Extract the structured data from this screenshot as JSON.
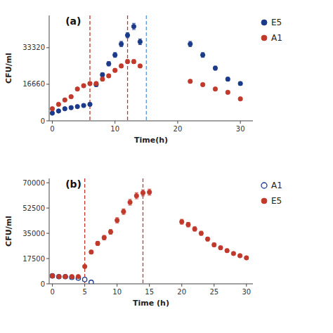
{
  "chart_data": [
    {
      "type": "scatter",
      "title": "(a)",
      "x_label": "Time(h)",
      "y_label": "CFU/ml",
      "xlim": [
        -0.5,
        32
      ],
      "ylim": [
        0,
        48000
      ],
      "xticks": [
        0,
        10,
        20,
        30
      ],
      "yticks": [
        0,
        16660,
        33320
      ],
      "grid": false,
      "legend": "right",
      "series": [
        {
          "name": "E5",
          "color": "#1a3a8a",
          "marker": "circle",
          "x": [
            0,
            1,
            2,
            3,
            4,
            5,
            6,
            7,
            8,
            9,
            10,
            11,
            12,
            13,
            14,
            22,
            24,
            26,
            28,
            30
          ],
          "values": [
            3500,
            4500,
            5500,
            6000,
            6500,
            7000,
            7500,
            16500,
            21000,
            26000,
            30000,
            35000,
            39000,
            43000,
            36000,
            35000,
            30000,
            24000,
            19000,
            17000
          ],
          "errors": [
            300,
            350,
            350,
            400,
            400,
            400,
            600,
            800,
            900,
            1000,
            1100,
            1200,
            1200,
            1400,
            1300,
            1200,
            1100,
            900,
            800,
            700
          ]
        },
        {
          "name": "A1",
          "color": "#c0392b",
          "marker": "circle",
          "x": [
            0,
            1,
            2,
            3,
            4,
            5,
            6,
            7,
            8,
            9,
            10,
            11,
            12,
            13,
            14,
            22,
            24,
            26,
            28,
            30
          ],
          "values": [
            5500,
            7500,
            9500,
            11000,
            14500,
            16000,
            17000,
            17000,
            19000,
            20500,
            23000,
            25000,
            27000,
            27000,
            25000,
            18000,
            16500,
            14500,
            13000,
            10000
          ],
          "errors": [
            300,
            350,
            400,
            450,
            600,
            650,
            650,
            650,
            700,
            750,
            800,
            850,
            850,
            850,
            750,
            650,
            600,
            550,
            500,
            400
          ]
        }
      ],
      "vlines": [
        {
          "x": 6,
          "color": "#c0392b",
          "line_style": "dashed"
        },
        {
          "x": 12,
          "color": "#c0392b",
          "line_style": "dashed"
        },
        {
          "x": 15,
          "color": "#5b9bd5",
          "line_style": "dashed"
        }
      ]
    },
    {
      "type": "scatter",
      "title": "(b)",
      "x_label": "Time (h)",
      "y_label": "CFU/ml",
      "xlim": [
        -0.5,
        31
      ],
      "ylim": [
        0,
        73000
      ],
      "xticks": [
        0,
        5,
        10,
        15,
        20,
        25,
        30
      ],
      "yticks": [
        0,
        17500,
        35000,
        52500,
        70000
      ],
      "grid": false,
      "legend": "right",
      "series": [
        {
          "name": "A1",
          "color": "#1a3a8a",
          "marker": "open-circle",
          "x": [
            0,
            1,
            2,
            3,
            4,
            5,
            6
          ],
          "values": [
            5500,
            5000,
            5000,
            4500,
            4000,
            3000,
            1000
          ],
          "errors": [
            500,
            500,
            500,
            450,
            400,
            350,
            200
          ]
        },
        {
          "name": "E5",
          "color": "#c0392b",
          "marker": "circle",
          "x": [
            0,
            1,
            2,
            3,
            4,
            5,
            6,
            7,
            8,
            9,
            10,
            11,
            12,
            13,
            14,
            15,
            20,
            21,
            22,
            23,
            24,
            25,
            26,
            27,
            28,
            29,
            30
          ],
          "values": [
            5500,
            5000,
            5000,
            5000,
            5000,
            12000,
            22000,
            28000,
            32000,
            36000,
            44000,
            50000,
            56500,
            61000,
            63000,
            63500,
            43000,
            41000,
            38000,
            35000,
            31000,
            27000,
            25000,
            23000,
            21000,
            19500,
            18000
          ],
          "errors": [
            450,
            400,
            400,
            400,
            400,
            900,
            1200,
            1400,
            1500,
            1600,
            1800,
            1900,
            2000,
            2100,
            2100,
            2100,
            1700,
            1600,
            1500,
            1400,
            1300,
            1200,
            1100,
            1000,
            900,
            800,
            750
          ]
        }
      ],
      "vlines": [
        {
          "x": 5,
          "color": "#c0392b",
          "line_style": "dashed"
        },
        {
          "x": 14,
          "color": "#c0392b",
          "line_style": "dashed"
        }
      ]
    }
  ]
}
